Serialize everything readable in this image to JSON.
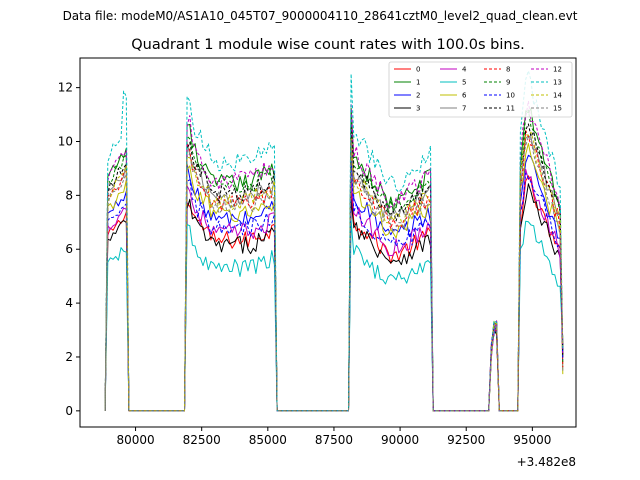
{
  "suptitle": "Data file: modeM0/AS1A10_045T07_9000004110_28641cztM0_level2_quad_clean.evt",
  "chart_data": {
    "type": "line",
    "title": "Quadrant 1 module wise count rates with 100.0s bins.",
    "xlabel": "",
    "ylabel": "",
    "x_offset_label": "+3.482e8",
    "xlim": [
      77900,
      96650
    ],
    "ylim": [
      -0.6,
      13.1
    ],
    "x_ticks": [
      80000,
      82500,
      85000,
      87500,
      90000,
      92500,
      95000
    ],
    "x_tick_labels": [
      "80000",
      "82500",
      "85000",
      "87500",
      "90000",
      "92500",
      "95000"
    ],
    "y_ticks": [
      0,
      2,
      4,
      6,
      8,
      10,
      12
    ],
    "y_tick_labels": [
      "0",
      "2",
      "4",
      "6",
      "8",
      "10",
      "12"
    ],
    "grid": false,
    "legend_position": "top-right",
    "segments": [
      {
        "start": 78950,
        "end": 79650,
        "shape": "gentle-rise"
      },
      {
        "start": 81950,
        "end": 85250,
        "shape": "spike-then-flat-then-rise"
      },
      {
        "start": 88150,
        "end": 91150,
        "shape": "spike-dip-rise"
      },
      {
        "start": 93450,
        "end": 93650,
        "shape": "small-blip"
      },
      {
        "start": 94550,
        "end": 96150,
        "shape": "spike-then-fall"
      }
    ],
    "series": [
      {
        "name": "0",
        "color": "#ff0000",
        "dash": "solid",
        "base": 6.6
      },
      {
        "name": "1",
        "color": "#008000",
        "dash": "solid",
        "base": 8.8
      },
      {
        "name": "2",
        "color": "#0000ff",
        "dash": "solid",
        "base": 7.4
      },
      {
        "name": "3",
        "color": "#000000",
        "dash": "solid",
        "base": 6.4
      },
      {
        "name": "4",
        "color": "#c000c0",
        "dash": "solid",
        "base": 6.9
      },
      {
        "name": "5",
        "color": "#00bfbf",
        "dash": "solid",
        "base": 5.5
      },
      {
        "name": "6",
        "color": "#bfbf00",
        "dash": "solid",
        "base": 7.6
      },
      {
        "name": "7",
        "color": "#808080",
        "dash": "solid",
        "base": 8.2
      },
      {
        "name": "8",
        "color": "#ff0000",
        "dash": "dashed",
        "base": 8.0
      },
      {
        "name": "9",
        "color": "#008000",
        "dash": "dashed",
        "base": 8.6
      },
      {
        "name": "10",
        "color": "#0000ff",
        "dash": "dashed",
        "base": 7.0
      },
      {
        "name": "11",
        "color": "#000000",
        "dash": "dashed",
        "base": 8.4
      },
      {
        "name": "12",
        "color": "#c000c0",
        "dash": "dashed",
        "base": 8.9
      },
      {
        "name": "13",
        "color": "#00bfbf",
        "dash": "dashed",
        "base": 9.6
      },
      {
        "name": "14",
        "color": "#bfbf00",
        "dash": "dashed",
        "base": 8.1
      },
      {
        "name": "15",
        "color": "#808080",
        "dash": "dashed",
        "base": 7.9
      }
    ]
  }
}
